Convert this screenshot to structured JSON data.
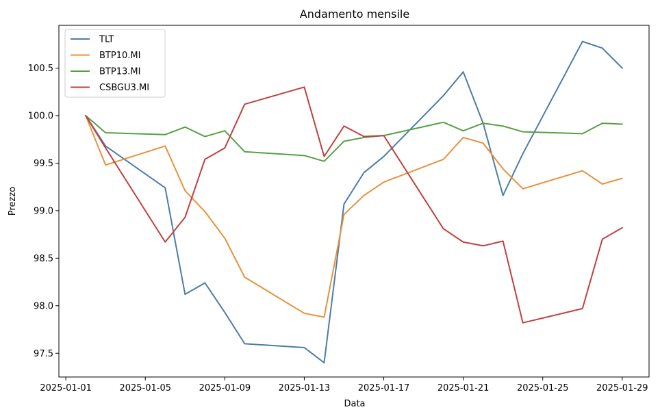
{
  "chart_data": {
    "type": "line",
    "title": "Andamento mensile",
    "xlabel": "Data",
    "ylabel": "Prezzo",
    "xlim": [
      "2025-01-01",
      "2025-01-29"
    ],
    "ylim": [
      97.25,
      100.95
    ],
    "xticks": [
      "2025-01-01",
      "2025-01-05",
      "2025-01-09",
      "2025-01-13",
      "2025-01-17",
      "2025-01-21",
      "2025-01-25",
      "2025-01-29"
    ],
    "yticks": [
      "97.5",
      "98.0",
      "98.5",
      "99.0",
      "99.5",
      "100.0",
      "100.5"
    ],
    "grid": false,
    "legend_position": "top-left",
    "x": [
      "2025-01-02",
      "2025-01-03",
      "2025-01-06",
      "2025-01-07",
      "2025-01-08",
      "2025-01-09",
      "2025-01-10",
      "2025-01-13",
      "2025-01-14",
      "2025-01-15",
      "2025-01-16",
      "2025-01-17",
      "2025-01-20",
      "2025-01-21",
      "2025-01-22",
      "2025-01-23",
      "2025-01-24",
      "2025-01-27",
      "2025-01-28",
      "2025-01-29"
    ],
    "series": [
      {
        "name": "TLT",
        "color": "#4c7ca8",
        "values": [
          100.0,
          99.68,
          99.24,
          98.12,
          98.24,
          97.93,
          97.6,
          97.56,
          97.4,
          99.07,
          99.4,
          99.57,
          100.21,
          100.46,
          99.92,
          99.16,
          99.6,
          100.78,
          100.71,
          100.5
        ]
      },
      {
        "name": "BTP10.MI",
        "color": "#e8913a",
        "values": [
          100.0,
          99.48,
          99.68,
          99.21,
          98.99,
          98.71,
          98.3,
          97.92,
          97.88,
          98.96,
          99.16,
          99.3,
          99.54,
          99.77,
          99.71,
          99.44,
          99.23,
          99.42,
          99.28,
          99.34
        ]
      },
      {
        "name": "BTP13.MI",
        "color": "#55a043",
        "values": [
          100.0,
          99.82,
          99.8,
          99.88,
          99.78,
          99.84,
          99.62,
          99.58,
          99.52,
          99.73,
          99.77,
          99.79,
          99.93,
          99.84,
          99.92,
          99.89,
          99.83,
          99.81,
          99.92,
          99.91
        ]
      },
      {
        "name": "CSBGU3.MI",
        "color": "#c0403e",
        "values": [
          100.0,
          99.66,
          98.67,
          98.93,
          99.54,
          99.66,
          100.12,
          100.3,
          99.57,
          99.89,
          99.78,
          99.79,
          98.81,
          98.67,
          98.63,
          98.68,
          97.82,
          97.97,
          98.7,
          98.82
        ]
      }
    ]
  }
}
